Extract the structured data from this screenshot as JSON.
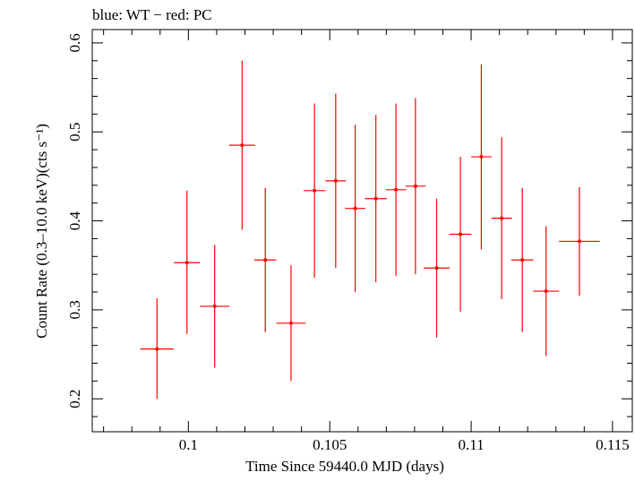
{
  "chart_data": {
    "type": "scatter",
    "title": "blue: WT − red: PC",
    "xlabel": "Time Since 59440.0 MJD (days)",
    "ylabel": "Count Rate (0.3–10.0 keV)(cts s⁻¹)",
    "xlim": [
      0.0966,
      0.1157
    ],
    "ylim": [
      0.163,
      0.615
    ],
    "xticks": [
      0.1,
      0.105,
      0.11,
      0.115
    ],
    "xtick_labels": [
      "0.1",
      "0.105",
      "0.11",
      "0.115"
    ],
    "yticks": [
      0.2,
      0.3,
      0.4,
      0.5,
      0.6
    ],
    "ytick_labels": [
      "0.2",
      "0.3",
      "0.4",
      "0.5",
      "0.6"
    ],
    "grid": false,
    "series": [
      {
        "color": "#ff0000",
        "points": [
          {
            "x": 0.09889,
            "xerr": 0.00059,
            "y": 0.256,
            "yerr_low": 0.056,
            "yerr_high": 0.057
          },
          {
            "x": 0.09995,
            "xerr": 0.00046,
            "y": 0.353,
            "yerr_low": 0.08,
            "yerr_high": 0.081
          },
          {
            "x": 0.10093,
            "xerr": 0.00052,
            "y": 0.304,
            "yerr_low": 0.069,
            "yerr_high": 0.069
          },
          {
            "x": 0.1019,
            "xerr": 0.00046,
            "y": 0.485,
            "yerr_low": 0.095,
            "yerr_high": 0.095
          },
          {
            "x": 0.10272,
            "xerr": 0.00039,
            "y": 0.356,
            "yerr_low": 0.081,
            "yerr_high": 0.081
          },
          {
            "x": 0.10363,
            "xerr": 0.00052,
            "y": 0.285,
            "yerr_low": 0.065,
            "yerr_high": 0.065
          },
          {
            "x": 0.10446,
            "xerr": 0.00039,
            "y": 0.434,
            "yerr_low": 0.098,
            "yerr_high": 0.098
          },
          {
            "x": 0.10521,
            "xerr": 0.00036,
            "y": 0.445,
            "yerr_low": 0.098,
            "yerr_high": 0.098
          },
          {
            "x": 0.1059,
            "xerr": 0.00036,
            "y": 0.414,
            "yerr_low": 0.094,
            "yerr_high": 0.094
          },
          {
            "x": 0.10663,
            "xerr": 0.00039,
            "y": 0.425,
            "yerr_low": 0.094,
            "yerr_high": 0.094
          },
          {
            "x": 0.10734,
            "xerr": 0.00036,
            "y": 0.435,
            "yerr_low": 0.097,
            "yerr_high": 0.097
          },
          {
            "x": 0.10803,
            "xerr": 0.00036,
            "y": 0.439,
            "yerr_low": 0.099,
            "yerr_high": 0.099
          },
          {
            "x": 0.10878,
            "xerr": 0.00046,
            "y": 0.347,
            "yerr_low": 0.078,
            "yerr_high": 0.078
          },
          {
            "x": 0.10962,
            "xerr": 0.00039,
            "y": 0.385,
            "yerr_low": 0.087,
            "yerr_high": 0.087
          },
          {
            "x": 0.11036,
            "xerr": 0.00036,
            "y": 0.472,
            "yerr_low": 0.104,
            "yerr_high": 0.104
          },
          {
            "x": 0.11108,
            "xerr": 0.00036,
            "y": 0.403,
            "yerr_low": 0.091,
            "yerr_high": 0.091
          },
          {
            "x": 0.11181,
            "xerr": 0.00039,
            "y": 0.356,
            "yerr_low": 0.081,
            "yerr_high": 0.081
          },
          {
            "x": 0.11265,
            "xerr": 0.00046,
            "y": 0.321,
            "yerr_low": 0.073,
            "yerr_high": 0.073
          },
          {
            "x": 0.11383,
            "xerr": 0.00072,
            "y": 0.377,
            "yerr_low": 0.061,
            "yerr_high": 0.061
          }
        ]
      }
    ]
  }
}
